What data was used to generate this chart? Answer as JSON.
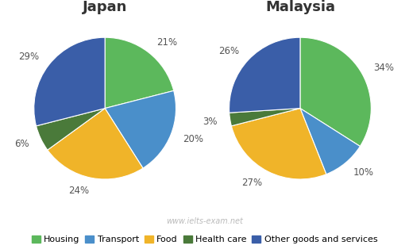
{
  "japan": {
    "title": "Japan",
    "values": [
      21,
      20,
      24,
      6,
      29
    ],
    "labels": [
      "21%",
      "20%",
      "24%",
      "6%",
      "29%"
    ],
    "startangle": 90
  },
  "malaysia": {
    "title": "Malaysia",
    "values": [
      34,
      10,
      27,
      3,
      26
    ],
    "labels": [
      "34%",
      "10%",
      "27%",
      "3%",
      "26%"
    ],
    "startangle": 90
  },
  "categories": [
    "Housing",
    "Transport",
    "Food",
    "Health care",
    "Other goods and services"
  ],
  "colors": [
    "#5cb85c",
    "#4a8fca",
    "#f0b429",
    "#4a7a3a",
    "#3a5ea8"
  ],
  "watermark": "www.ielts-exam.net",
  "background_color": "#ffffff",
  "title_fontsize": 13,
  "label_fontsize": 8.5,
  "legend_fontsize": 8
}
